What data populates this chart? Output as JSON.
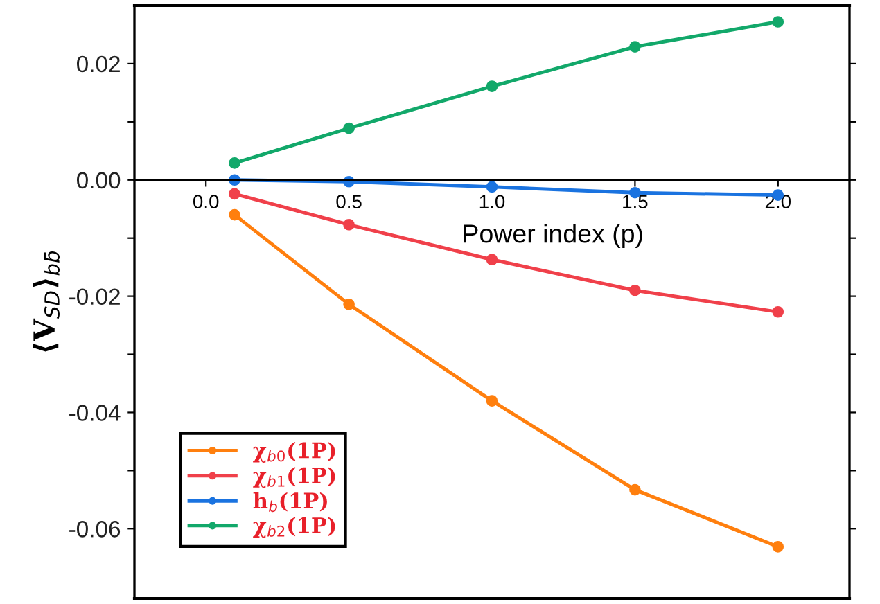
{
  "chart_data": {
    "type": "line",
    "xlabel": "Power index (p)",
    "ylabel": "⟨V$_{SD}$⟩$_{bb̄}$",
    "x": [
      0.1,
      0.5,
      1.0,
      1.5,
      2.0
    ],
    "series": [
      {
        "name": "χ$_{b0}$(1P)",
        "color": "#ff7f0e",
        "values": [
          -0.006,
          -0.0214,
          -0.038,
          -0.0533,
          -0.0631
        ]
      },
      {
        "name": "χ$_{b1}$(1P)",
        "color": "#f0404a",
        "values": [
          -0.0024,
          -0.0077,
          -0.0137,
          -0.019,
          -0.0227
        ]
      },
      {
        "name": "h$_{b}$(1P)",
        "color": "#1a73e0",
        "values": [
          0.0,
          -0.0003,
          -0.0012,
          -0.0022,
          -0.0026
        ]
      },
      {
        "name": "χ$_{b2}$(1P)",
        "color": "#12a86a",
        "values": [
          0.0029,
          0.0089,
          0.0161,
          0.0229,
          0.0272
        ]
      }
    ],
    "xlim": [
      -0.25,
      2.25
    ],
    "xticks": [
      {
        "value": 0.0,
        "label": "0.0"
      },
      {
        "value": 0.5,
        "label": "0.5"
      },
      {
        "value": 1.0,
        "label": "1.0"
      },
      {
        "value": 1.5,
        "label": "1.5"
      },
      {
        "value": 2.0,
        "label": "2.0"
      }
    ],
    "ylim": [
      -0.072,
      0.03
    ],
    "yticks": [
      {
        "value": -0.06,
        "label": "-0.06"
      },
      {
        "value": -0.05,
        "label": null
      },
      {
        "value": -0.04,
        "label": "-0.04"
      },
      {
        "value": -0.03,
        "label": null
      },
      {
        "value": -0.02,
        "label": "-0.02"
      },
      {
        "value": -0.01,
        "label": null
      },
      {
        "value": 0.0,
        "label": "0.00"
      },
      {
        "value": 0.01,
        "label": null
      },
      {
        "value": 0.02,
        "label": "0.02"
      }
    ],
    "marker": "circle",
    "line_style": "solid",
    "legend": "bottom left",
    "grid": false
  }
}
